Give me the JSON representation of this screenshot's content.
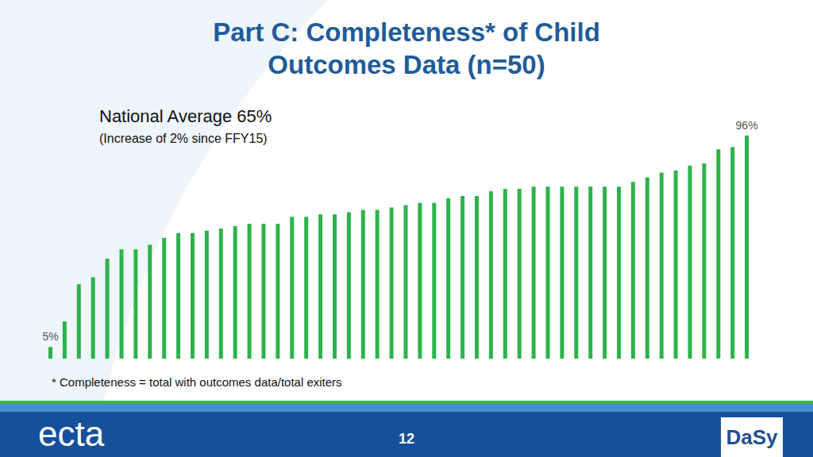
{
  "chart_data": {
    "type": "bar",
    "title": "Part C: Completeness* of Child Outcomes Data (n=50)",
    "subtitle": "National Average 65%",
    "annotations": [
      "(Increase of 2% since FFY15)",
      "* Completeness = total with outcomes data/total exiters"
    ],
    "categories": [
      null,
      null,
      null,
      null,
      null,
      null,
      null,
      null,
      null,
      null,
      null,
      null,
      null,
      null,
      null,
      null,
      null,
      null,
      null,
      null,
      null,
      null,
      null,
      null,
      null,
      null,
      null,
      null,
      null,
      null,
      null,
      null,
      null,
      null,
      null,
      null,
      null,
      null,
      null,
      null,
      null,
      null,
      null,
      null,
      null,
      null,
      null,
      null,
      null,
      null
    ],
    "values": [
      5,
      16,
      32,
      35,
      43,
      47,
      47,
      49,
      52,
      54,
      54,
      55,
      56,
      57,
      58,
      58,
      58,
      61,
      61,
      62,
      62,
      63,
      64,
      64,
      65,
      66,
      67,
      67,
      69,
      70,
      70,
      72,
      73,
      73,
      74,
      74,
      74,
      74,
      74,
      74,
      74,
      76,
      78,
      80,
      81,
      83,
      84,
      90,
      91,
      96
    ],
    "value_labels": [
      "5%",
      null,
      null,
      null,
      null,
      null,
      null,
      null,
      null,
      null,
      null,
      null,
      null,
      null,
      null,
      null,
      null,
      null,
      null,
      null,
      null,
      null,
      null,
      null,
      null,
      null,
      null,
      null,
      null,
      null,
      null,
      null,
      null,
      null,
      null,
      null,
      null,
      null,
      null,
      null,
      null,
      null,
      null,
      null,
      null,
      null,
      null,
      null,
      null,
      "96%"
    ],
    "color": "#2db34a",
    "ylim": [
      0,
      100
    ],
    "tick_labels": false
  },
  "footer": {
    "left_logo": "ecta",
    "page": "12",
    "right_logo": "DaSy"
  }
}
